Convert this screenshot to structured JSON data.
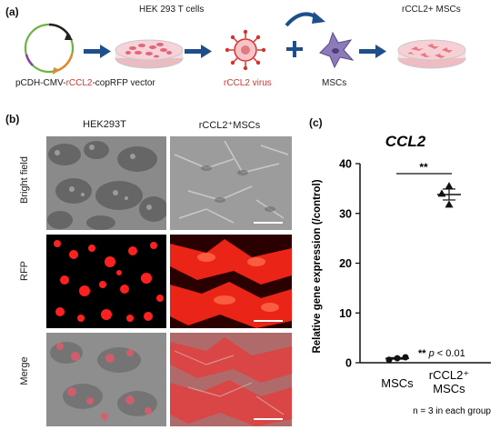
{
  "panel_a": {
    "label": "(a)",
    "hek_title": "HEK 293 T cells",
    "vector_prefix": "pCDH-CMV-",
    "vector_gene": "rCCL2",
    "vector_suffix": "-copRFP vector",
    "virus_label": "rCCL2 virus",
    "mscs_label": "MSCs",
    "result_label": "rCCL2+ MSCs",
    "colors": {
      "arrow": "#1f4e8c",
      "accent_red": "#d8322e",
      "dish_pink": "#f2a7b0",
      "cell_purple": "#7b6aa6"
    }
  },
  "panel_b": {
    "label": "(b)",
    "col_headers": [
      "HEK293T",
      "rCCL2⁺MSCs"
    ],
    "row_labels": [
      "Bright field",
      "RFP",
      "Merge"
    ]
  },
  "panel_c": {
    "label": "(c)",
    "chart_data": {
      "type": "scatter",
      "title": "CCL2",
      "ylabel": "Relative gene expression (/control)",
      "ylim": [
        0,
        40
      ],
      "yticks": [
        "0",
        "10",
        "20",
        "30",
        "40"
      ],
      "categories": [
        "MSCs",
        "rCCL2⁺ MSCs"
      ],
      "cat_line1": [
        "MSCs",
        "rCCL2⁺"
      ],
      "cat_line2": [
        "",
        "MSCs"
      ],
      "series": [
        {
          "category": "MSCs",
          "points": [
            0.6,
            0.9,
            1.1
          ],
          "mean": 0.87,
          "sem": 0.15,
          "marker": "circle"
        },
        {
          "category": "rCCL2⁺ MSCs",
          "points": [
            35.5,
            34.0,
            31.8
          ],
          "mean": 33.8,
          "sem": 1.1,
          "marker": "triangle"
        }
      ],
      "significance": "**",
      "p_note_stars": "**",
      "p_note_p": "p",
      "p_note_rest": " < 0.01",
      "n_note": "n = 3 in each group"
    }
  }
}
